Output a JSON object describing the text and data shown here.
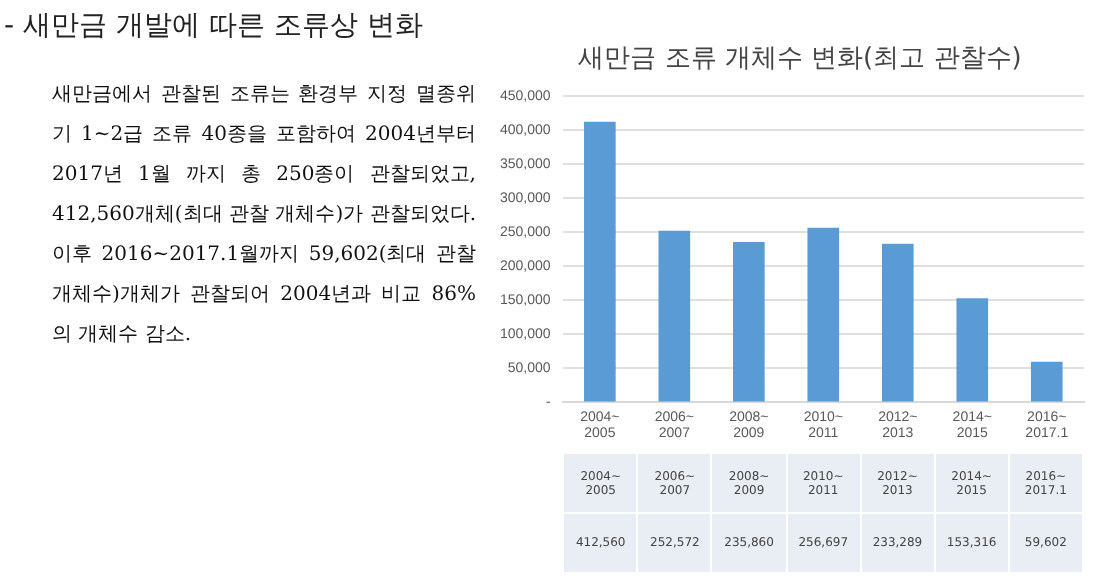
{
  "chart_data": {
    "type": "bar",
    "title": "새만금 조류 개체수 변화(최고 관찰수)",
    "categories": [
      "2004~2005",
      "2006~2007",
      "2008~2009",
      "2010~2011",
      "2012~2013",
      "2014~2015",
      "2016~2017.1"
    ],
    "values": [
      412560,
      252572,
      235860,
      256697,
      233289,
      153316,
      59602
    ],
    "value_labels": [
      "412,560",
      "252,572",
      "235,860",
      "256,697",
      "233,289",
      "153,316",
      "59,602"
    ],
    "color": "#5b9bd5",
    "ylim": [
      0,
      450000
    ],
    "yticks": [
      {
        "value": 0,
        "label": "-"
      },
      {
        "value": 50000,
        "label": "50,000"
      },
      {
        "value": 100000,
        "label": "100,000"
      },
      {
        "value": 150000,
        "label": "150,000"
      },
      {
        "value": 200000,
        "label": "200,000"
      },
      {
        "value": 250000,
        "label": "250,000"
      },
      {
        "value": 300000,
        "label": "300,000"
      },
      {
        "value": 350000,
        "label": "350,000"
      },
      {
        "value": 400000,
        "label": "400,000"
      },
      {
        "value": 450000,
        "label": "450,000"
      }
    ],
    "grid": "y",
    "annotations": [
      "- 새만금 개발에 따른 조류상 변화",
      "새만금에서 관찰된 조류는 환경부 지정 멸종위기 1~2급 조류 40종을 포함하여 2004년부터 2017년 1월 까지 총 250종이 관찰되었고, 412,560개체(최대 관찰 개체수)가 관찰되었다. 이후 2016~2017.1월까지 59,602(최대 관찰 개체수)개체가 관찰되어 2004년과 비교 86%의 개체수 감소."
    ]
  }
}
